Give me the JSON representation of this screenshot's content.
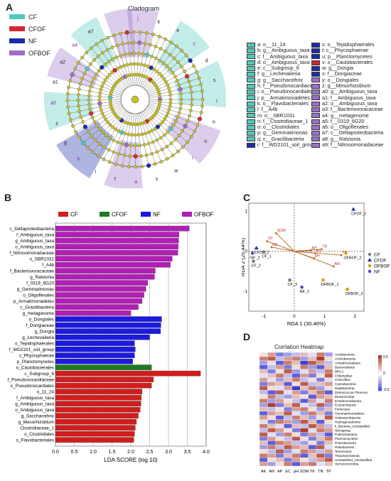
{
  "panels": {
    "a_label": "A",
    "b_label": "B",
    "c_label": "C",
    "d_label": "D",
    "cladogram_title": "Cladogram",
    "heatmap_title": "Corrlation Heatmap"
  },
  "colors": {
    "CF": "#4fc9bd",
    "CFOF": "#d7262f",
    "NF": "#1b2ca8",
    "OFBOF": "#9b6fc9",
    "CF_bar": "#d11d1d",
    "CFOF_bar": "#1f7a21",
    "NF_bar": "#1a1ae0",
    "OFBOF_bar": "#b21eb5"
  },
  "clado_legend": [
    {
      "label": "CF",
      "color": "#4fc9bd"
    },
    {
      "label": "CFOF",
      "color": "#d7262f"
    },
    {
      "label": "NF",
      "color": "#1b2ca8"
    },
    {
      "label": "OFBOF",
      "color": "#9b6fc9"
    }
  ],
  "clado_key_left": [
    {
      "text": "a: o__11_24",
      "c": "CF"
    },
    {
      "text": "b: g__Ambiguous_taxa",
      "c": "CF"
    },
    {
      "text": "c: f__Ambiguous_taxa",
      "c": "CF"
    },
    {
      "text": "d: o__Ambiguous_taxa",
      "c": "CF"
    },
    {
      "text": "e: c__Subgroup_6",
      "c": "CF"
    },
    {
      "text": "f: g__Lechevalieria",
      "c": "CF"
    },
    {
      "text": "g: g__Saccharothrix",
      "c": "CF"
    },
    {
      "text": "h: f__Pseudonocardiaceae",
      "c": "CF"
    },
    {
      "text": "i: o__Pseudonocardiales",
      "c": "CF"
    },
    {
      "text": "j: p__Armatimonadetes",
      "c": "CF"
    },
    {
      "text": "k: o__Flavobacteriales",
      "c": "CF"
    },
    {
      "text": "l: f__A4b",
      "c": "CF"
    },
    {
      "text": "m: o__SBR1031",
      "c": "CF"
    },
    {
      "text": "n: f__Clostridiaceae_1",
      "c": "CF"
    },
    {
      "text": "o: o__Clostridiales",
      "c": "CF"
    },
    {
      "text": "p: g__Gemmatimonas",
      "c": "CF"
    },
    {
      "text": "q: c__Gracilibacteria",
      "c": "CF"
    },
    {
      "text": "r: f__WD2101_soil_group",
      "c": "NF"
    }
  ],
  "clado_key_right": [
    {
      "text": "s: o__Tepidisphaerales",
      "c": "NF"
    },
    {
      "text": "t: c__Phycisphaerae",
      "c": "NF"
    },
    {
      "text": "u: p__Planctomycetes",
      "c": "NF"
    },
    {
      "text": "v: o__Caulobacterales",
      "c": "CFOF"
    },
    {
      "text": "w: g__Dongia",
      "c": "NF"
    },
    {
      "text": "x: f__Dongiaceae",
      "c": "NF"
    },
    {
      "text": "y: o__Dongiales",
      "c": "OFBOF"
    },
    {
      "text": "z: g__Mesorhizobium",
      "c": "OFBOF"
    },
    {
      "text": "a0: g__Ambiguous_taxa",
      "c": "OFBOF"
    },
    {
      "text": "a1: f__Ambiguous_taxa",
      "c": "OFBOF"
    },
    {
      "text": "a2: o__Ambiguous_taxa",
      "c": "OFBOF"
    },
    {
      "text": "a3: f__Bacteriovoracaceae",
      "c": "OFBOF"
    },
    {
      "text": "a4: g__metagenome",
      "c": "OFBOF"
    },
    {
      "text": "a5: f__0319_6G20",
      "c": "OFBOF"
    },
    {
      "text": "a6: o__Oligoflexales",
      "c": "OFBOF"
    },
    {
      "text": "a7: c__Deltaproteobacteria",
      "c": "OFBOF"
    },
    {
      "text": "a8: g__Ralstonia",
      "c": "OFBOF"
    },
    {
      "text": "a9: f__Nitrosomonadaceae",
      "c": "OFBOF"
    }
  ],
  "clado_outer_letters": [
    "j",
    "k",
    "e",
    "c",
    "d",
    "s",
    "t",
    "o",
    "n",
    "r",
    "w",
    "x",
    "a",
    "f",
    "i",
    "h",
    "g",
    "z",
    "a0",
    "a1",
    "a2",
    "a4",
    "a7"
  ],
  "chart_data": [
    {
      "type": "bar",
      "orientation": "horizontal",
      "xlabel": "LDA SCORE (log 10)",
      "xlim": [
        0,
        4.0
      ],
      "xticks": [
        "0.0",
        "0.5",
        "1.0",
        "1.5",
        "2.0",
        "2.5",
        "3.0",
        "3.5",
        "4.0"
      ],
      "legend": [
        "CF",
        "CFOF",
        "NF",
        "OFBOF"
      ],
      "legend_placement": "top",
      "grid": true,
      "bars": [
        {
          "label": "c_Deltaproteobacteria",
          "value": 3.55,
          "group": "OFBOF"
        },
        {
          "label": "f_Ambiguous_taxa",
          "value": 3.28,
          "group": "OFBOF"
        },
        {
          "label": "g_Ambiguous_taxa",
          "value": 3.27,
          "group": "OFBOF"
        },
        {
          "label": "o_Ambiguous_taxa",
          "value": 3.26,
          "group": "OFBOF"
        },
        {
          "label": "f_Nitrosomonadaceae",
          "value": 3.25,
          "group": "OFBOF"
        },
        {
          "label": "o_SBR1031",
          "value": 3.1,
          "group": "OFBOF"
        },
        {
          "label": "f_A4b",
          "value": 3.05,
          "group": "OFBOF"
        },
        {
          "label": "f_Bacteriovoracaceae",
          "value": 2.65,
          "group": "OFBOF"
        },
        {
          "label": "g_Ralstonia",
          "value": 2.63,
          "group": "OFBOF"
        },
        {
          "label": "f_0319_6G20",
          "value": 2.45,
          "group": "OFBOF"
        },
        {
          "label": "g_Gemmatimonas",
          "value": 2.4,
          "group": "OFBOF"
        },
        {
          "label": "o_Oligoflexales",
          "value": 2.35,
          "group": "OFBOF"
        },
        {
          "label": "p_Armatimonadetes",
          "value": 2.3,
          "group": "OFBOF"
        },
        {
          "label": "c_Gracilibacteria",
          "value": 2.2,
          "group": "OFBOF"
        },
        {
          "label": "g_metagenome",
          "value": 2.0,
          "group": "OFBOF"
        },
        {
          "label": "o_Dongiales",
          "value": 2.82,
          "group": "NF"
        },
        {
          "label": "f_Dongiaceae",
          "value": 2.8,
          "group": "NF"
        },
        {
          "label": "g_Dongia",
          "value": 2.79,
          "group": "NF"
        },
        {
          "label": "g_Lechevalieria",
          "value": 2.5,
          "group": "NF"
        },
        {
          "label": "o_Tepidisphaerales",
          "value": 2.1,
          "group": "NF"
        },
        {
          "label": "f_WD2101_soil_group",
          "value": 2.12,
          "group": "NF"
        },
        {
          "label": "c_Phycisphaerae",
          "value": 2.1,
          "group": "NF"
        },
        {
          "label": "p_Planctomycetes",
          "value": 2.05,
          "group": "NF"
        },
        {
          "label": "o_Caulobacterales",
          "value": 2.55,
          "group": "CFOF"
        },
        {
          "label": "c_Subgroup_6",
          "value": 3.85,
          "group": "CF"
        },
        {
          "label": "f_Pseudonocardiaceae",
          "value": 2.6,
          "group": "CF"
        },
        {
          "label": "o_Pseudonocardiales",
          "value": 2.55,
          "group": "CF"
        },
        {
          "label": "o_11_24",
          "value": 2.3,
          "group": "CF"
        },
        {
          "label": "f_Ambiguous_taxa",
          "value": 2.28,
          "group": "CF"
        },
        {
          "label": "g_Ambiguous_taxa",
          "value": 2.27,
          "group": "CF"
        },
        {
          "label": "o_Ambiguous_taxa",
          "value": 2.25,
          "group": "CF"
        },
        {
          "label": "g_Saccharothrix",
          "value": 2.2,
          "group": "CF"
        },
        {
          "label": "g_Mesorhizobium",
          "value": 2.15,
          "group": "CF"
        },
        {
          "label": "Clostridiaceae_1",
          "value": 2.12,
          "group": "CF"
        },
        {
          "label": "o_Clostridiales",
          "value": 2.1,
          "group": "CF"
        },
        {
          "label": "o_Flavobacteriales",
          "value": 2.08,
          "group": "CF"
        }
      ]
    },
    {
      "type": "scatter",
      "xlabel": "RDA 1 (30.46%)",
      "ylabel": "RDA 2 (20.44%)",
      "xlim": [
        -1.5,
        2.3
      ],
      "ylim": [
        -1.5,
        1.2
      ],
      "xticks": [
        "-1",
        "0",
        "1",
        "2"
      ],
      "yticks": [
        "-1",
        "0",
        "1"
      ],
      "legend": [
        {
          "name": "CF",
          "marker": "circle",
          "color": "#777777"
        },
        {
          "name": "CFOF",
          "marker": "triangle",
          "color": "#1c2fa0"
        },
        {
          "name": "OFBOF",
          "marker": "circle",
          "color": "#d4a100"
        },
        {
          "name": "NF",
          "marker": "circle",
          "color": "#5a3fc0"
        }
      ],
      "legend_placement": "right",
      "points": [
        {
          "label": "CFOF_1",
          "x": 1.95,
          "y": 1.05,
          "group": "CFOF"
        },
        {
          "label": "CFOF_2",
          "x": -1.25,
          "y": 0.08,
          "group": "CFOF"
        },
        {
          "label": "CF_1",
          "x": -1.0,
          "y": -0.02,
          "group": "CF"
        },
        {
          "label": "CF_2",
          "x": -1.35,
          "y": -0.25,
          "group": "CF"
        },
        {
          "label": "CF_3",
          "x": -0.15,
          "y": -0.72,
          "group": "CF"
        },
        {
          "label": "NF_1",
          "x": 0.25,
          "y": -0.9,
          "group": "NF"
        },
        {
          "label": "NF_2",
          "x": -1.38,
          "y": -0.05,
          "group": "NF"
        },
        {
          "label": "OFBOF_1",
          "x": 0.95,
          "y": -0.72,
          "group": "OFBOF"
        },
        {
          "label": "OFBOF_2",
          "x": 1.7,
          "y": -0.05,
          "group": "OFBOF"
        },
        {
          "label": "OFBOF_3",
          "x": 1.75,
          "y": -0.95,
          "group": "OFBOF"
        }
      ],
      "arrows": [
        {
          "label": "SOM",
          "x": -0.6,
          "y": 0.45
        },
        {
          "label": "TP",
          "x": -0.9,
          "y": 0.25
        },
        {
          "label": "AK",
          "x": -0.75,
          "y": 0.1
        },
        {
          "label": "TN",
          "x": 1.55,
          "y": -0.1
        },
        {
          "label": "AN",
          "x": 1.3,
          "y": -0.38
        },
        {
          "label": "pH",
          "x": 0.65,
          "y": -0.18
        },
        {
          "label": "EC",
          "x": 0.7,
          "y": -0.05
        },
        {
          "label": "AP",
          "x": 0.55,
          "y": 0.02
        },
        {
          "label": "TK",
          "x": 0.9,
          "y": 0.05
        }
      ]
    },
    {
      "type": "heatmap",
      "title": "Corrlation Heatmap",
      "columns": [
        "AK",
        "AN",
        "AP",
        "EC",
        "pH",
        "SOM",
        "TK",
        "TN",
        "TP"
      ],
      "rows": [
        "Acidobacteria",
        "Actinobacteria",
        "Armatimonadetes",
        "Bacteroidetes",
        "BRC1",
        "Chlamydiae",
        "Chloroflexi",
        "Cyanobacteria",
        "Dadabacteria",
        "Deinococcus-Thermus",
        "Elusimicrobia",
        "Entotheonellaeota",
        "Euryarchaeota",
        "Firmicutes",
        "Gemmatimonadetes",
        "Halanaerobiaeota",
        "Hydrogenedentes",
        "k_Bacteria_Unclassified",
        "Nitrospirae",
        "Patescibacteria",
        "Planctomycetes",
        "Proteobacteria",
        "Rokubacteria",
        "Tenericutes",
        "Thaumarchaeota",
        "Unclassified_Unclassified",
        "Verrucomicrobia"
      ],
      "scale": [
        "-0.5",
        "0",
        "0.5"
      ],
      "values": [
        [
          0.1,
          0.3,
          -0.4,
          -0.3,
          -0.2,
          0.2,
          -0.1,
          0.4,
          -0.3
        ],
        [
          0.4,
          0.5,
          -0.2,
          0.3,
          0.4,
          -0.3,
          0.2,
          0.6,
          0.1
        ],
        [
          -0.3,
          0.1,
          -0.5,
          0.4,
          0.2,
          -0.6,
          0.5,
          0.3,
          -0.2
        ],
        [
          -0.5,
          -0.2,
          0.3,
          -0.4,
          0.1,
          0.4,
          -0.3,
          -0.5,
          0.2
        ],
        [
          0.2,
          -0.4,
          0.1,
          0.5,
          -0.3,
          -0.1,
          0.3,
          -0.2,
          0.4
        ],
        [
          -0.1,
          0.2,
          0.4,
          -0.2,
          -0.5,
          0.3,
          -0.4,
          0.1,
          0.5
        ],
        [
          0.3,
          -0.1,
          -0.3,
          0.2,
          0.4,
          -0.2,
          0.1,
          -0.4,
          -0.1
        ],
        [
          -0.4,
          0.3,
          0.2,
          -0.5,
          0.1,
          0.5,
          -0.2,
          0.2,
          0.3
        ],
        [
          0.5,
          0.1,
          -0.1,
          0.3,
          -0.6,
          0.2,
          0.4,
          -0.3,
          0.1
        ],
        [
          -0.2,
          -0.5,
          0.5,
          -0.1,
          0.3,
          -0.4,
          0.2,
          0.4,
          -0.5
        ],
        [
          0.1,
          0.4,
          -0.2,
          -0.3,
          0.2,
          0.1,
          -0.5,
          0.3,
          0.2
        ],
        [
          0.4,
          -0.3,
          0.3,
          0.1,
          -0.2,
          -0.5,
          0.3,
          -0.1,
          0.4
        ],
        [
          -0.3,
          0.6,
          -0.4,
          0.2,
          0.5,
          -0.1,
          -0.2,
          0.5,
          -0.3
        ],
        [
          0.2,
          -0.2,
          0.1,
          -0.4,
          0.3,
          0.4,
          0.1,
          -0.3,
          0.2
        ],
        [
          -0.5,
          0.3,
          0.2,
          0.5,
          -0.1,
          -0.3,
          0.4,
          0.2,
          -0.4
        ],
        [
          0.3,
          0.1,
          -0.5,
          -0.2,
          0.4,
          0.2,
          -0.3,
          0.1,
          0.5
        ],
        [
          -0.1,
          -0.4,
          0.4,
          0.3,
          -0.3,
          0.5,
          0.2,
          -0.5,
          0.1
        ],
        [
          0.4,
          0.2,
          -0.1,
          -0.5,
          0.2,
          -0.2,
          0.5,
          0.3,
          -0.2
        ],
        [
          -0.2,
          0.5,
          0.3,
          0.1,
          -0.4,
          0.6,
          -0.1,
          0.4,
          0.3
        ],
        [
          0.5,
          -0.1,
          -0.3,
          0.4,
          0.1,
          -0.4,
          0.3,
          -0.2,
          -0.5
        ],
        [
          -0.4,
          0.3,
          0.1,
          -0.2,
          0.5,
          0.1,
          -0.4,
          0.2,
          0.4
        ],
        [
          0.2,
          -0.5,
          0.4,
          0.3,
          -0.2,
          -0.3,
          0.1,
          -0.4,
          0.2
        ],
        [
          -0.3,
          0.4,
          -0.2,
          0.5,
          0.3,
          0.2,
          -0.5,
          0.5,
          -0.1
        ],
        [
          0.1,
          -0.2,
          0.5,
          -0.3,
          -0.1,
          0.4,
          0.3,
          -0.2,
          0.3
        ],
        [
          0.4,
          0.3,
          -0.4,
          0.2,
          0.4,
          -0.5,
          0.2,
          0.5,
          -0.4
        ],
        [
          -0.5,
          0.1,
          0.2,
          -0.4,
          0.3,
          0.1,
          -0.2,
          0.3,
          0.5
        ],
        [
          0.3,
          -0.3,
          0.1,
          0.4,
          -0.5,
          0.3,
          0.4,
          -0.1,
          0.2
        ]
      ]
    }
  ]
}
